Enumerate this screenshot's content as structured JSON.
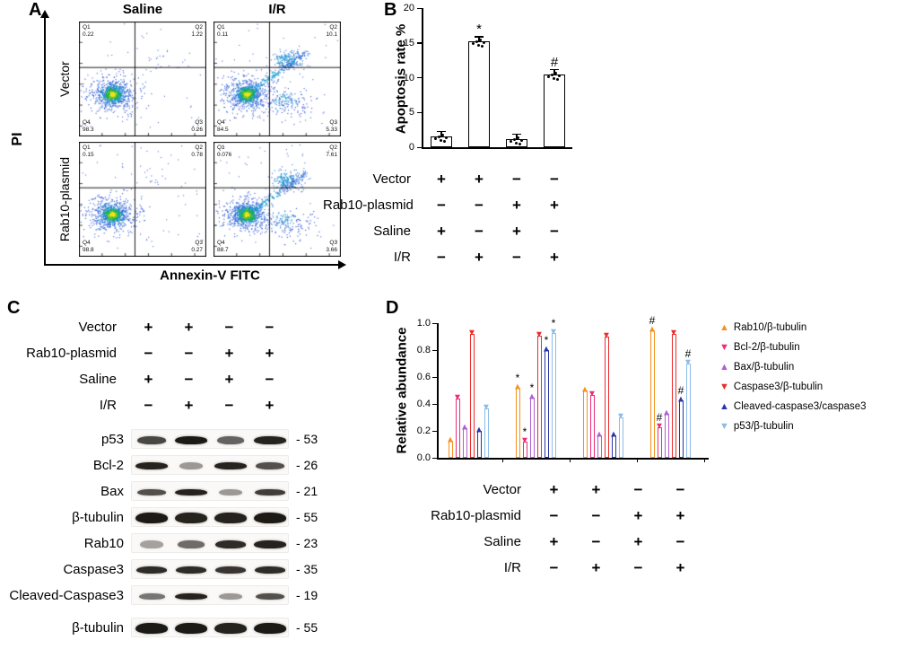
{
  "panel_a": {
    "label": "A",
    "col_headers": [
      "Saline",
      "I/R"
    ],
    "row_headers": [
      "Vector",
      "Rab10-plasmid"
    ],
    "x_axis_label": "Annexin-V FITC",
    "y_axis_label": "PI",
    "plots": [
      {
        "row": "Vector",
        "col": "Saline",
        "quadrants": {
          "q1": "0.22",
          "q2": "1.22",
          "q3": "0.26",
          "q4": "98.3"
        }
      },
      {
        "row": "Vector",
        "col": "I/R",
        "quadrants": {
          "q1": "0.11",
          "q2": "10.1",
          "q3": "5.33",
          "q4": "84.5"
        }
      },
      {
        "row": "Rab10-plasmid",
        "col": "Saline",
        "quadrants": {
          "q1": "0.15",
          "q2": "0.78",
          "q3": "0.27",
          "q4": "98.8"
        }
      },
      {
        "row": "Rab10-plasmid",
        "col": "I/R",
        "quadrants": {
          "q1": "0.076",
          "q2": "7.61",
          "q3": "3.66",
          "q4": "88.7"
        }
      }
    ]
  },
  "panel_b": {
    "label": "B"
  },
  "panel_c": {
    "label": "C",
    "blots": [
      {
        "protein": "p53",
        "mw": "- 53",
        "band_h": 9,
        "bands": [
          0.75,
          1.0,
          0.6,
          0.95
        ]
      },
      {
        "protein": "Bcl-2",
        "mw": "- 26",
        "band_h": 8,
        "bands": [
          0.95,
          0.3,
          0.95,
          0.7
        ]
      },
      {
        "protein": "Bax",
        "mw": "- 21",
        "band_h": 7,
        "bands": [
          0.7,
          0.95,
          0.3,
          0.8
        ]
      },
      {
        "protein": "β-tubulin",
        "mw": "- 55",
        "band_h": 12,
        "bands": [
          1.0,
          0.95,
          0.95,
          1.0
        ]
      },
      {
        "protein": "Rab10",
        "mw": "- 23",
        "band_h": 9,
        "bands": [
          0.25,
          0.55,
          0.9,
          0.95
        ]
      },
      {
        "protein": "Caspase3",
        "mw": "- 35",
        "band_h": 8,
        "bands": [
          0.9,
          0.9,
          0.85,
          0.9
        ]
      },
      {
        "protein": "Cleaved-Caspase3",
        "mw": "- 19",
        "band_h": 7,
        "bands": [
          0.5,
          0.95,
          0.3,
          0.7
        ]
      },
      {
        "protein": "β-tubulin",
        "mw": "- 55",
        "band_h": 12,
        "bands": [
          1.0,
          1.0,
          0.95,
          1.0
        ]
      }
    ]
  },
  "panel_d": {
    "label": "D"
  },
  "treatment_matrix": {
    "rows": [
      {
        "label": "Vector",
        "values": [
          "+",
          "+",
          "−",
          "−"
        ]
      },
      {
        "label": "Rab10-plasmid",
        "values": [
          "−",
          "−",
          "+",
          "+"
        ]
      },
      {
        "label": "Saline",
        "values": [
          "+",
          "−",
          "+",
          "−"
        ]
      },
      {
        "label": "I/R",
        "values": [
          "−",
          "+",
          "−",
          "+"
        ]
      }
    ]
  },
  "chart_data": [
    {
      "id": "apoptosis_rate",
      "type": "bar",
      "title": "",
      "xlabel": "",
      "ylabel": "Apoptosis rate %",
      "ylim": [
        0,
        20
      ],
      "yticks": [
        "0",
        "5",
        "10",
        "15",
        "20"
      ],
      "grid": false,
      "categories": [
        "Vector+Saline",
        "Vector+I/R",
        "Rab10-plasmid+Saline",
        "Rab10-plasmid+I/R"
      ],
      "values": [
        1.6,
        15.2,
        1.2,
        10.5
      ],
      "annotations": [
        "",
        "*",
        "",
        "#"
      ]
    },
    {
      "id": "relative_abundance",
      "type": "bar",
      "title": "",
      "xlabel": "",
      "ylabel": "Relative abundance",
      "ylim": [
        0,
        1.0
      ],
      "yticks": [
        "0.0",
        "0.2",
        "0.4",
        "0.6",
        "0.8",
        "1.0"
      ],
      "grid": false,
      "legend_position": "right",
      "categories": [
        "Vector+Saline",
        "Vector+I/R",
        "Rab10-plasmid+Saline",
        "Rab10-plasmid+I/R"
      ],
      "series": [
        {
          "name": "Rab10/β-tubulin",
          "color": "#F5921F",
          "marker": "triangle-up",
          "values": [
            0.13,
            0.52,
            0.5,
            0.95
          ],
          "annotations": [
            "",
            "*",
            "",
            "#"
          ]
        },
        {
          "name": "Bcl-2/β-tubulin",
          "color": "#EC2D7A",
          "marker": "triangle-down",
          "values": [
            0.44,
            0.12,
            0.47,
            0.23
          ],
          "annotations": [
            "",
            "*",
            "",
            "#"
          ]
        },
        {
          "name": "Bax/β-tubulin",
          "color": "#B05FD0",
          "marker": "triangle-up",
          "values": [
            0.22,
            0.45,
            0.17,
            0.33
          ],
          "annotations": [
            "",
            "*",
            "",
            ""
          ]
        },
        {
          "name": "Caspase3/β-tubulin",
          "color": "#EE2B2B",
          "marker": "triangle-down",
          "values": [
            0.92,
            0.91,
            0.9,
            0.92
          ],
          "annotations": [
            "",
            "",
            "",
            ""
          ]
        },
        {
          "name": "Cleaved-caspase3/caspase3",
          "color": "#2A35A8",
          "marker": "triangle-up",
          "values": [
            0.2,
            0.8,
            0.17,
            0.43
          ],
          "annotations": [
            "",
            "*",
            "",
            "#"
          ]
        },
        {
          "name": "p53/β-tubulin",
          "color": "#8BBCE8",
          "marker": "triangle-down",
          "values": [
            0.37,
            0.93,
            0.3,
            0.7
          ],
          "annotations": [
            "",
            "*",
            "",
            "#"
          ]
        }
      ]
    }
  ]
}
